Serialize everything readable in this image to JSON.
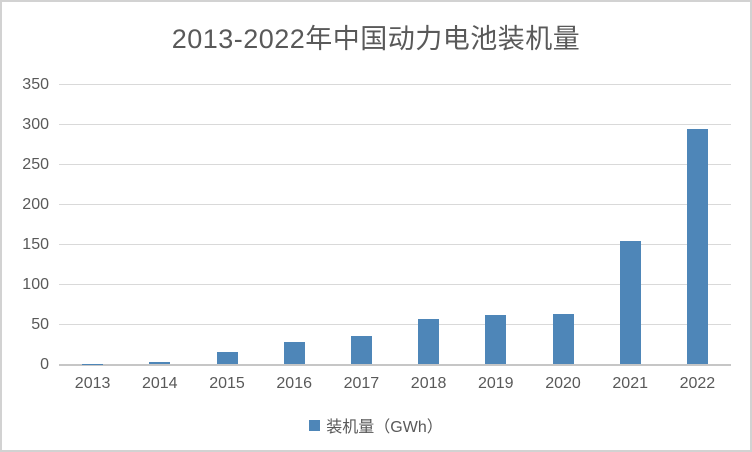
{
  "window": {
    "background": "#ffffff",
    "border_color": "#d2d2d2"
  },
  "header": {
    "title": "2013-2022年中国动力电池装机量"
  },
  "chart_data": {
    "type": "bar",
    "title": "2013-2022年中国动力电池装机量",
    "categories": [
      "2013",
      "2014",
      "2015",
      "2016",
      "2017",
      "2018",
      "2019",
      "2020",
      "2021",
      "2022"
    ],
    "series": [
      {
        "name": "装机量（GWh）",
        "values": [
          0.8,
          3.7,
          15.7,
          28.2,
          36.2,
          56.9,
          62.2,
          63.6,
          154.5,
          294.6
        ],
        "color": "#4e86b8"
      }
    ],
    "xlabel": "",
    "ylabel": "",
    "ylim": [
      0,
      350
    ],
    "y_tick_step": 50,
    "y_ticks": [
      0,
      50,
      100,
      150,
      200,
      250,
      300,
      350
    ],
    "grid": true,
    "legend_position": "bottom"
  },
  "legend": {
    "label": "装机量（GWh）",
    "swatch_color": "#4e86b8"
  },
  "colors": {
    "bar": "#4e86b8",
    "gridline": "#d9d9d9",
    "axis_line": "#c6c6c6",
    "text": "#595959"
  }
}
